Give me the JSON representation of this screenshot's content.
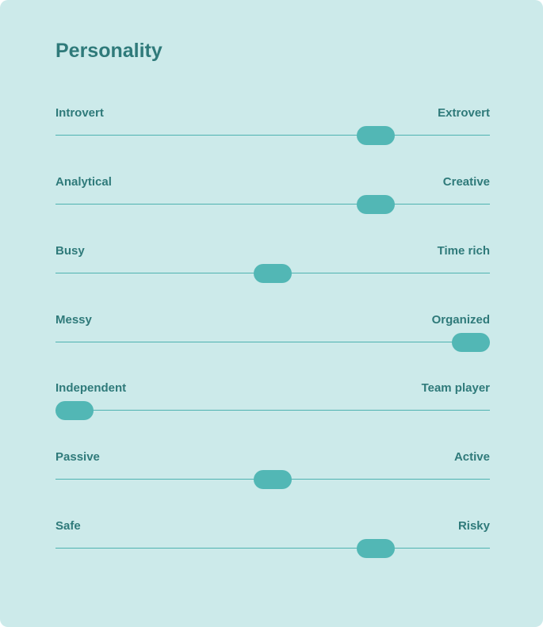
{
  "title": "Personality",
  "colors": {
    "card_background": "#cceaea",
    "text": "#2f7a7a",
    "track": "#4eb2b0",
    "thumb": "#52b7b5"
  },
  "sliders": [
    {
      "left_label": "Introvert",
      "right_label": "Extrovert",
      "value": 0.76
    },
    {
      "left_label": "Analytical",
      "right_label": "Creative",
      "value": 0.76
    },
    {
      "left_label": "Busy",
      "right_label": "Time rich",
      "value": 0.5
    },
    {
      "left_label": "Messy",
      "right_label": "Organized",
      "value": 1.0
    },
    {
      "left_label": "Independent",
      "right_label": "Team player",
      "value": 0.0
    },
    {
      "left_label": "Passive",
      "right_label": "Active",
      "value": 0.5
    },
    {
      "left_label": "Safe",
      "right_label": "Risky",
      "value": 0.76
    }
  ]
}
